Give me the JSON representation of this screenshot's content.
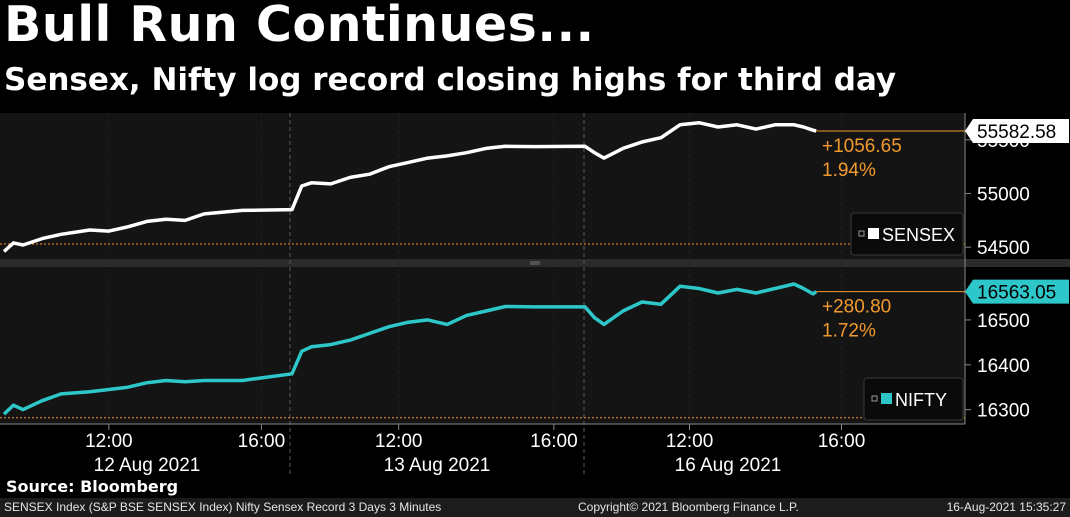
{
  "header": {
    "title": "Bull Run Continues...",
    "subtitle": "Sensex, Nifty log record closing highs for third day"
  },
  "colors": {
    "sensex": "#ffffff",
    "nifty": "#2ec7c9",
    "change": "#f39a2e",
    "panel_bg": "#141414",
    "grid": "#5a5a5a"
  },
  "chart_data": [
    {
      "type": "line",
      "name": "SENSEX",
      "series": [
        {
          "name": "SENSEX",
          "points": [
            [
              "12 Aug 09:15",
              54460
            ],
            [
              "12 Aug 09:30",
              54540
            ],
            [
              "12 Aug 09:45",
              54520
            ],
            [
              "12 Aug 10:15",
              54580
            ],
            [
              "12 Aug 10:45",
              54620
            ],
            [
              "12 Aug 11:30",
              54660
            ],
            [
              "12 Aug 12:00",
              54650
            ],
            [
              "12 Aug 12:30",
              54690
            ],
            [
              "12 Aug 13:00",
              54740
            ],
            [
              "12 Aug 13:30",
              54760
            ],
            [
              "12 Aug 14:00",
              54750
            ],
            [
              "12 Aug 14:30",
              54810
            ],
            [
              "12 Aug 15:30",
              54843
            ],
            [
              "13 Aug 09:15",
              54850
            ],
            [
              "13 Aug 09:30",
              55070
            ],
            [
              "13 Aug 09:45",
              55100
            ],
            [
              "13 Aug 10:15",
              55090
            ],
            [
              "13 Aug 10:45",
              55150
            ],
            [
              "13 Aug 11:15",
              55180
            ],
            [
              "13 Aug 11:45",
              55250
            ],
            [
              "13 Aug 12:15",
              55290
            ],
            [
              "13 Aug 12:45",
              55330
            ],
            [
              "13 Aug 13:15",
              55350
            ],
            [
              "13 Aug 13:45",
              55380
            ],
            [
              "13 Aug 14:15",
              55420
            ],
            [
              "13 Aug 14:45",
              55440
            ],
            [
              "13 Aug 15:30",
              55437
            ],
            [
              "16 Aug 09:15",
              55440
            ],
            [
              "16 Aug 09:30",
              55380
            ],
            [
              "16 Aug 09:45",
              55330
            ],
            [
              "16 Aug 10:15",
              55420
            ],
            [
              "16 Aug 10:45",
              55480
            ],
            [
              "16 Aug 11:15",
              55520
            ],
            [
              "16 Aug 11:45",
              55640
            ],
            [
              "16 Aug 12:15",
              55660
            ],
            [
              "16 Aug 12:45",
              55620
            ],
            [
              "16 Aug 13:15",
              55640
            ],
            [
              "16 Aug 13:45",
              55600
            ],
            [
              "16 Aug 14:15",
              55640
            ],
            [
              "16 Aug 14:45",
              55640
            ],
            [
              "16 Aug 15:00",
              55620
            ],
            [
              "16 Aug 15:15",
              55590
            ],
            [
              "16 Aug 15:20",
              55582.58
            ]
          ]
        }
      ],
      "last_value": "55582.58",
      "change": "+1056.65",
      "change_pct": "1.94%",
      "y_ticks": [
        "54500",
        "55000",
        "55500"
      ],
      "ylim": [
        54390,
        55750
      ],
      "reference_line": 54530,
      "legend": "SENSEX"
    },
    {
      "type": "line",
      "name": "NIFTY",
      "series": [
        {
          "name": "NIFTY",
          "points": [
            [
              "12 Aug 09:15",
              16290
            ],
            [
              "12 Aug 09:30",
              16310
            ],
            [
              "12 Aug 09:45",
              16300
            ],
            [
              "12 Aug 10:15",
              16320
            ],
            [
              "12 Aug 10:45",
              16335
            ],
            [
              "12 Aug 11:30",
              16340
            ],
            [
              "12 Aug 12:00",
              16345
            ],
            [
              "12 Aug 12:30",
              16350
            ],
            [
              "12 Aug 13:00",
              16360
            ],
            [
              "12 Aug 13:30",
              16365
            ],
            [
              "12 Aug 14:00",
              16362
            ],
            [
              "12 Aug 14:30",
              16365
            ],
            [
              "12 Aug 15:30",
              16365
            ],
            [
              "13 Aug 09:15",
              16380
            ],
            [
              "13 Aug 09:30",
              16430
            ],
            [
              "13 Aug 09:45",
              16440
            ],
            [
              "13 Aug 10:15",
              16445
            ],
            [
              "13 Aug 10:45",
              16455
            ],
            [
              "13 Aug 11:15",
              16470
            ],
            [
              "13 Aug 11:45",
              16485
            ],
            [
              "13 Aug 12:15",
              16495
            ],
            [
              "13 Aug 12:45",
              16500
            ],
            [
              "13 Aug 13:15",
              16490
            ],
            [
              "13 Aug 13:45",
              16510
            ],
            [
              "13 Aug 14:15",
              16520
            ],
            [
              "13 Aug 14:45",
              16530
            ],
            [
              "13 Aug 15:30",
              16529
            ],
            [
              "16 Aug 09:15",
              16529
            ],
            [
              "16 Aug 09:30",
              16505
            ],
            [
              "16 Aug 09:45",
              16490
            ],
            [
              "16 Aug 10:15",
              16520
            ],
            [
              "16 Aug 10:45",
              16540
            ],
            [
              "16 Aug 11:15",
              16535
            ],
            [
              "16 Aug 11:45",
              16575
            ],
            [
              "16 Aug 12:15",
              16570
            ],
            [
              "16 Aug 12:45",
              16560
            ],
            [
              "16 Aug 13:15",
              16568
            ],
            [
              "16 Aug 13:45",
              16560
            ],
            [
              "16 Aug 14:15",
              16570
            ],
            [
              "16 Aug 14:45",
              16580
            ],
            [
              "16 Aug 15:00",
              16570
            ],
            [
              "16 Aug 15:15",
              16558
            ],
            [
              "16 Aug 15:20",
              16563.05
            ]
          ]
        }
      ],
      "last_value": "16563.05",
      "change": "+280.80",
      "change_pct": "1.72%",
      "y_ticks": [
        "16300",
        "16400",
        "16500"
      ],
      "ylim": [
        16268,
        16618
      ],
      "reference_line": 16282,
      "legend": "NIFTY"
    }
  ],
  "x_axis": {
    "time_labels": [
      "12:00",
      "16:00",
      "12:00",
      "16:00",
      "12:00",
      "16:00"
    ],
    "date_labels": [
      "12 Aug 2021",
      "13 Aug 2021",
      "16 Aug 2021"
    ]
  },
  "source": "Source: Bloomberg",
  "footer": {
    "left": "SENSEX Index (S&P BSE SENSEX Index) Nifty Sensex Record 3 Days 3 Minutes",
    "center": "Copyright© 2021 Bloomberg Finance L.P.",
    "right": "16-Aug-2021 15:35:27"
  }
}
